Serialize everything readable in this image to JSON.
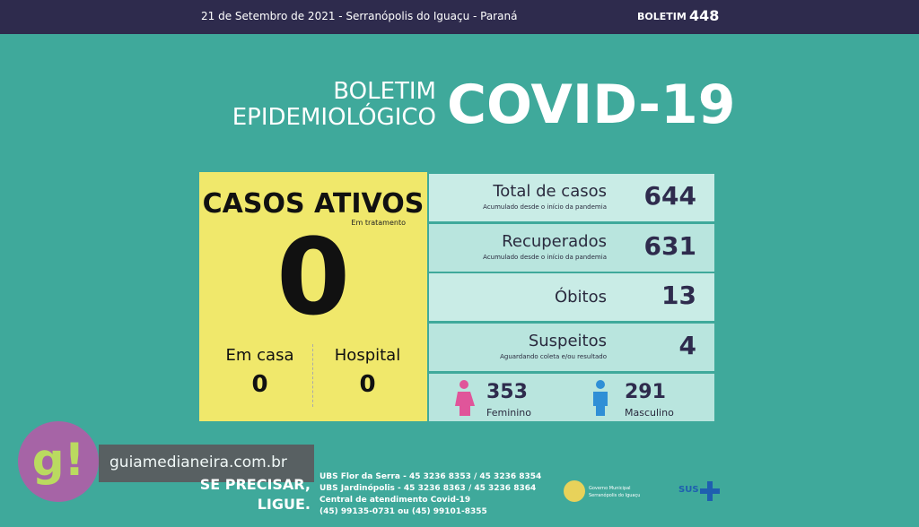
{
  "header": {
    "date_location": "21 de Setembro de 2021 - Serranópolis do Iguaçu - Paraná",
    "boletim_label": "BOLETIM",
    "boletim_number": 448
  },
  "title": {
    "line1": "BOLETIM",
    "line2": "EPIDEMIOLÓGICO",
    "main": "COVID-19"
  },
  "active": {
    "title": "CASOS ATIVOS",
    "subtitle": "Em tratamento",
    "value": 0,
    "home": {
      "label": "Em casa",
      "value": 0
    },
    "hospital": {
      "label": "Hospital",
      "value": 0
    }
  },
  "stats": [
    {
      "label": "Total de casos",
      "note": "Acumulado desde o início da pandemia",
      "value": 644
    },
    {
      "label": "Recuperados",
      "note": "Acumulado desde o início da pandemia",
      "value": 631
    },
    {
      "label": "Óbitos",
      "value": 13
    },
    {
      "label": "Suspeitos",
      "note": "Aguardando coleta e/ou resultado",
      "value": 4
    }
  ],
  "gender": {
    "female": {
      "value": 353,
      "label": "Feminino"
    },
    "male": {
      "value": 291,
      "label": "Masculino"
    }
  },
  "footer": {
    "logo": "g!",
    "site": "guiamedianeira.com.br",
    "call": [
      "SE PRECISAR,",
      "LIGUE."
    ],
    "contacts": [
      "UBS Flor da Serra - 45 3236 8353 / 45 3236 8354",
      "UBS Jardinópolis - 45 3236 8363 / 45 3236 8364",
      "Central de atendimento Covid-19",
      "(45) 99135-0731 ou (45) 99101-8355"
    ],
    "gov": [
      "Governo Municipal",
      "Serranópolis do Iguaçu"
    ],
    "sus": "SUS"
  }
}
